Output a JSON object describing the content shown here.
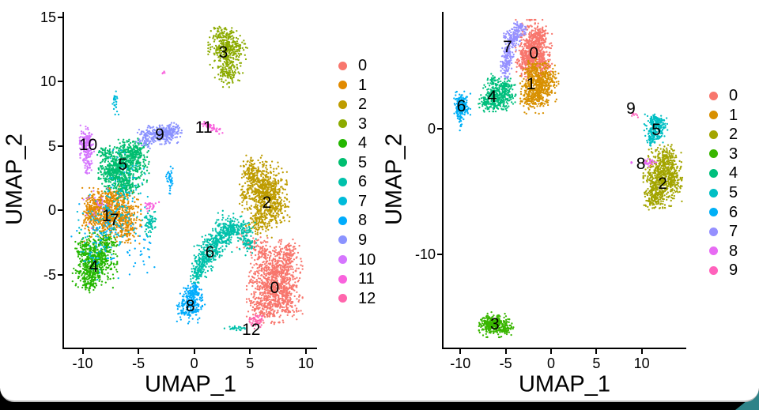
{
  "frame": {
    "background_color": "#000000",
    "card_color": "#ffffff",
    "card_edge_color": "#bdbdbd",
    "corner_accent_color": "#2e8388"
  },
  "chart_data": [
    {
      "type": "scatter",
      "title": "",
      "xlabel": "UMAP_1",
      "ylabel": "UMAP_2",
      "x_ticks": [
        -10,
        -5,
        0,
        5,
        10
      ],
      "y_ticks": [
        15,
        10,
        5,
        0,
        -5
      ],
      "xlim": [
        -11.7,
        11.0
      ],
      "ylim": [
        -10.6,
        15.4
      ],
      "grid": false,
      "legend_position": "right",
      "clusters": [
        {
          "id": "0",
          "label": "0",
          "color": "#F8766D",
          "label_pos": [
            7.2,
            -6.1
          ],
          "blobs": [
            [
              7.2,
              -5.6,
              1.0,
              1.25,
              800
            ],
            [
              6.3,
              -7.6,
              0.6,
              0.5,
              120
            ],
            [
              8.1,
              -7.2,
              0.6,
              0.55,
              110
            ],
            [
              8.3,
              -3.4,
              0.5,
              0.6,
              110
            ],
            [
              6.1,
              -3.1,
              0.45,
              0.45,
              70
            ],
            [
              4.3,
              -1.9,
              0.5,
              0.4,
              15
            ],
            [
              5.2,
              -2.6,
              0.3,
              0.3,
              15
            ]
          ]
        },
        {
          "id": "1",
          "label": "1",
          "color": "#E18A00",
          "label_pos": [
            -7.85,
            -0.5
          ],
          "blobs": [
            [
              -7.4,
              -0.4,
              1.05,
              0.85,
              640
            ],
            [
              -8.7,
              0.4,
              0.5,
              0.5,
              120
            ],
            [
              -6.1,
              -1.4,
              0.5,
              0.5,
              110
            ],
            [
              -7.0,
              1.1,
              0.5,
              0.35,
              90
            ],
            [
              -9.3,
              -0.6,
              0.3,
              0.4,
              40
            ]
          ]
        },
        {
          "id": "2",
          "label": "2",
          "color": "#BE9C00",
          "label_pos": [
            6.5,
            0.55
          ],
          "blobs": [
            [
              6.3,
              1.4,
              0.8,
              0.95,
              560
            ],
            [
              5.2,
              3.0,
              0.5,
              0.5,
              110
            ],
            [
              6.0,
              -0.9,
              0.55,
              0.5,
              120
            ],
            [
              7.3,
              0.1,
              0.5,
              0.6,
              110
            ],
            [
              4.6,
              1.2,
              0.3,
              0.5,
              40
            ]
          ]
        },
        {
          "id": "3",
          "label": "3",
          "color": "#8CAB00",
          "label_pos": [
            2.6,
            12.2
          ],
          "blobs": [
            [
              3.0,
              12.6,
              0.7,
              0.62,
              320
            ],
            [
              3.1,
              10.8,
              0.5,
              0.5,
              130
            ],
            [
              2.4,
              13.8,
              0.35,
              0.25,
              40
            ]
          ]
        },
        {
          "id": "4",
          "label": "4",
          "color": "#24B700",
          "label_pos": [
            -9.0,
            -4.4
          ],
          "blobs": [
            [
              -8.9,
              -3.9,
              0.8,
              0.85,
              500
            ],
            [
              -9.5,
              -5.4,
              0.45,
              0.4,
              90
            ],
            [
              -7.9,
              -2.5,
              0.45,
              0.4,
              80
            ],
            [
              -9.9,
              -2.9,
              0.3,
              0.3,
              40
            ]
          ]
        },
        {
          "id": "5",
          "label": "5",
          "color": "#00BE70",
          "label_pos": [
            -6.4,
            3.5
          ],
          "blobs": [
            [
              -6.3,
              3.6,
              0.9,
              0.75,
              500
            ],
            [
              -7.5,
              2.7,
              0.5,
              0.5,
              130
            ],
            [
              -5.3,
              4.6,
              0.5,
              0.4,
              130
            ],
            [
              -6.2,
              1.9,
              0.6,
              0.4,
              130
            ],
            [
              -8.0,
              4.3,
              0.3,
              0.35,
              40
            ]
          ]
        },
        {
          "id": "6",
          "label": "6",
          "color": "#00C1AB",
          "label_pos": [
            1.4,
            -3.3
          ],
          "blobs": [
            [
              0.35,
              -4.9,
              0.3,
              0.4,
              80
            ],
            [
              0.9,
              -3.9,
              0.45,
              0.5,
              140
            ],
            [
              1.6,
              -2.9,
              0.5,
              0.5,
              150
            ],
            [
              2.4,
              -2.0,
              0.5,
              0.5,
              140
            ],
            [
              3.2,
              -1.3,
              0.5,
              0.5,
              120
            ],
            [
              4.2,
              -1.6,
              0.5,
              0.45,
              100
            ],
            [
              4.8,
              -2.6,
              0.3,
              0.4,
              50
            ],
            [
              -4.0,
              -1.1,
              0.3,
              0.5,
              60
            ],
            [
              3.8,
              -9.2,
              0.45,
              0.1,
              25
            ]
          ]
        },
        {
          "id": "7",
          "label": "7",
          "color": "#00BBDA",
          "label_pos": [
            -7.15,
            -0.8
          ],
          "blobs": [
            [
              -7.1,
              8.3,
              0.13,
              0.45,
              30
            ],
            [
              -7.3,
              -0.6,
              1.3,
              1.0,
              110
            ],
            [
              -6.3,
              2.4,
              1.0,
              0.9,
              45
            ],
            [
              -8.8,
              -3.4,
              0.8,
              0.8,
              35
            ]
          ]
        },
        {
          "id": "8",
          "label": "8",
          "color": "#00ACFC",
          "label_pos": [
            -0.35,
            -7.5
          ],
          "blobs": [
            [
              -0.3,
              -7.3,
              0.5,
              0.6,
              250
            ],
            [
              0.1,
              -6.2,
              0.3,
              0.3,
              50
            ],
            [
              -2.2,
              2.4,
              0.13,
              0.45,
              35
            ],
            [
              -8.0,
              -1.6,
              1.2,
              1.4,
              70
            ],
            [
              -4.7,
              -3.3,
              0.5,
              0.8,
              25
            ]
          ]
        },
        {
          "id": "9",
          "label": "9",
          "color": "#8B93FF",
          "label_pos": [
            -3.1,
            5.8
          ],
          "blobs": [
            [
              -3.0,
              5.95,
              0.7,
              0.33,
              240
            ],
            [
              -2.0,
              6.2,
              0.35,
              0.3,
              70
            ],
            [
              -4.3,
              5.5,
              0.35,
              0.3,
              60
            ]
          ]
        },
        {
          "id": "10",
          "label": "10",
          "color": "#D575FE",
          "label_pos": [
            -9.5,
            5.05
          ],
          "blobs": [
            [
              -9.7,
              5.5,
              0.3,
              0.45,
              110
            ],
            [
              -9.6,
              4.4,
              0.25,
              0.45,
              70
            ],
            [
              -9.5,
              3.3,
              0.2,
              0.35,
              30
            ],
            [
              -8.7,
              0.6,
              0.6,
              0.8,
              25
            ]
          ]
        },
        {
          "id": "11",
          "label": "11",
          "color": "#F962DD",
          "label_pos": [
            0.85,
            6.4
          ],
          "blobs": [
            [
              1.5,
              6.45,
              0.45,
              0.13,
              45,
              -20
            ],
            [
              0.95,
              6.75,
              0.14,
              0.1,
              10
            ],
            [
              -3.85,
              0.35,
              0.28,
              0.22,
              28
            ],
            [
              -2.7,
              10.7,
              0.07,
              0.07,
              4
            ]
          ]
        },
        {
          "id": "12",
          "label": "12",
          "color": "#FF65AC",
          "label_pos": [
            5.1,
            -9.3
          ],
          "blobs": [
            [
              5.6,
              -8.6,
              0.35,
              0.27,
              55
            ]
          ]
        }
      ]
    },
    {
      "type": "scatter",
      "title": "",
      "xlabel": "UMAP_1",
      "ylabel": "UMAP_2",
      "x_ticks": [
        -10,
        -5,
        0,
        5,
        10
      ],
      "y_ticks": [
        0,
        -10
      ],
      "xlim": [
        -11.9,
        14.9
      ],
      "ylim": [
        -17.5,
        9.3
      ],
      "grid": false,
      "legend_position": "right",
      "clusters": [
        {
          "id": "0",
          "label": "0",
          "color": "#F8766D",
          "label_pos": [
            -1.9,
            6.0
          ],
          "blobs": [
            [
              -1.9,
              6.3,
              0.8,
              0.95,
              620
            ],
            [
              -2.9,
              5.3,
              0.4,
              0.45,
              80
            ],
            [
              -1.0,
              5.1,
              0.35,
              0.4,
              60
            ],
            [
              -1.2,
              7.3,
              0.35,
              0.35,
              50
            ]
          ]
        },
        {
          "id": "1",
          "label": "1",
          "color": "#D89000",
          "label_pos": [
            -2.2,
            3.5
          ],
          "blobs": [
            [
              -1.4,
              3.2,
              0.8,
              0.8,
              460
            ],
            [
              -0.3,
              4.1,
              0.45,
              0.5,
              90
            ],
            [
              -2.4,
              2.4,
              0.4,
              0.35,
              60
            ],
            [
              -2.0,
              4.7,
              0.4,
              0.35,
              60
            ],
            [
              11.1,
              -2.85,
              0.1,
              0.07,
              4
            ]
          ]
        },
        {
          "id": "2",
          "label": "2",
          "color": "#A3A500",
          "label_pos": [
            12.3,
            -4.4
          ],
          "blobs": [
            [
              12.3,
              -3.8,
              0.85,
              1.0,
              520
            ],
            [
              11.5,
              -5.6,
              0.5,
              0.45,
              90
            ],
            [
              12.8,
              -2.3,
              0.45,
              0.5,
              90
            ],
            [
              13.6,
              -4.2,
              0.35,
              0.6,
              70
            ],
            [
              11.0,
              -4.8,
              0.3,
              0.4,
              50
            ]
          ]
        },
        {
          "id": "3",
          "label": "3",
          "color": "#39B600",
          "label_pos": [
            -6.2,
            -15.6
          ],
          "blobs": [
            [
              -6.2,
              -15.6,
              0.7,
              0.4,
              300
            ],
            [
              -4.9,
              -16.0,
              0.3,
              0.2,
              40
            ],
            [
              -7.3,
              -15.3,
              0.3,
              0.25,
              40
            ]
          ]
        },
        {
          "id": "4",
          "label": "4",
          "color": "#00BF7D",
          "label_pos": [
            -6.5,
            2.5
          ],
          "blobs": [
            [
              -5.9,
              2.5,
              0.8,
              0.45,
              300
            ],
            [
              -5.1,
              3.3,
              0.45,
              0.4,
              80
            ],
            [
              -7.0,
              2.1,
              0.4,
              0.3,
              60
            ],
            [
              -6.3,
              3.7,
              0.3,
              0.3,
              40
            ]
          ]
        },
        {
          "id": "5",
          "label": "5",
          "color": "#00BFC4",
          "label_pos": [
            11.6,
            -0.1
          ],
          "blobs": [
            [
              11.4,
              -0.1,
              0.45,
              0.5,
              160
            ],
            [
              12.1,
              0.3,
              0.3,
              0.3,
              50
            ],
            [
              11.0,
              -0.9,
              0.25,
              0.25,
              30
            ],
            [
              11.4,
              0.7,
              0.3,
              0.25,
              40
            ]
          ]
        },
        {
          "id": "6",
          "label": "6",
          "color": "#00B0F6",
          "label_pos": [
            -9.9,
            1.75
          ],
          "blobs": [
            [
              -9.9,
              1.8,
              0.4,
              0.5,
              200
            ],
            [
              -9.95,
              0.5,
              0.07,
              0.4,
              12
            ]
          ]
        },
        {
          "id": "7",
          "label": "7",
          "color": "#9590FF",
          "label_pos": [
            -4.8,
            6.5
          ],
          "blobs": [
            [
              -4.2,
              7.2,
              0.4,
              0.45,
              110
            ],
            [
              -4.8,
              5.9,
              0.3,
              0.5,
              90
            ],
            [
              -5.0,
              4.7,
              0.26,
              0.4,
              60
            ],
            [
              -3.5,
              7.9,
              0.35,
              0.28,
              60
            ]
          ]
        },
        {
          "id": "8",
          "label": "8",
          "color": "#E76BF3",
          "label_pos": [
            9.9,
            -2.8
          ],
          "blobs": [
            [
              10.9,
              -2.7,
              0.35,
              0.12,
              35
            ],
            [
              8.9,
              -2.75,
              0.06,
              0.06,
              3
            ]
          ]
        },
        {
          "id": "9",
          "label": "9",
          "color": "#FF62BC",
          "label_pos": [
            8.8,
            1.6
          ],
          "blobs": [
            [
              9.05,
              1.13,
              0.12,
              0.1,
              6
            ],
            [
              9.5,
              0.95,
              0.05,
              0.05,
              2
            ]
          ]
        }
      ]
    }
  ]
}
